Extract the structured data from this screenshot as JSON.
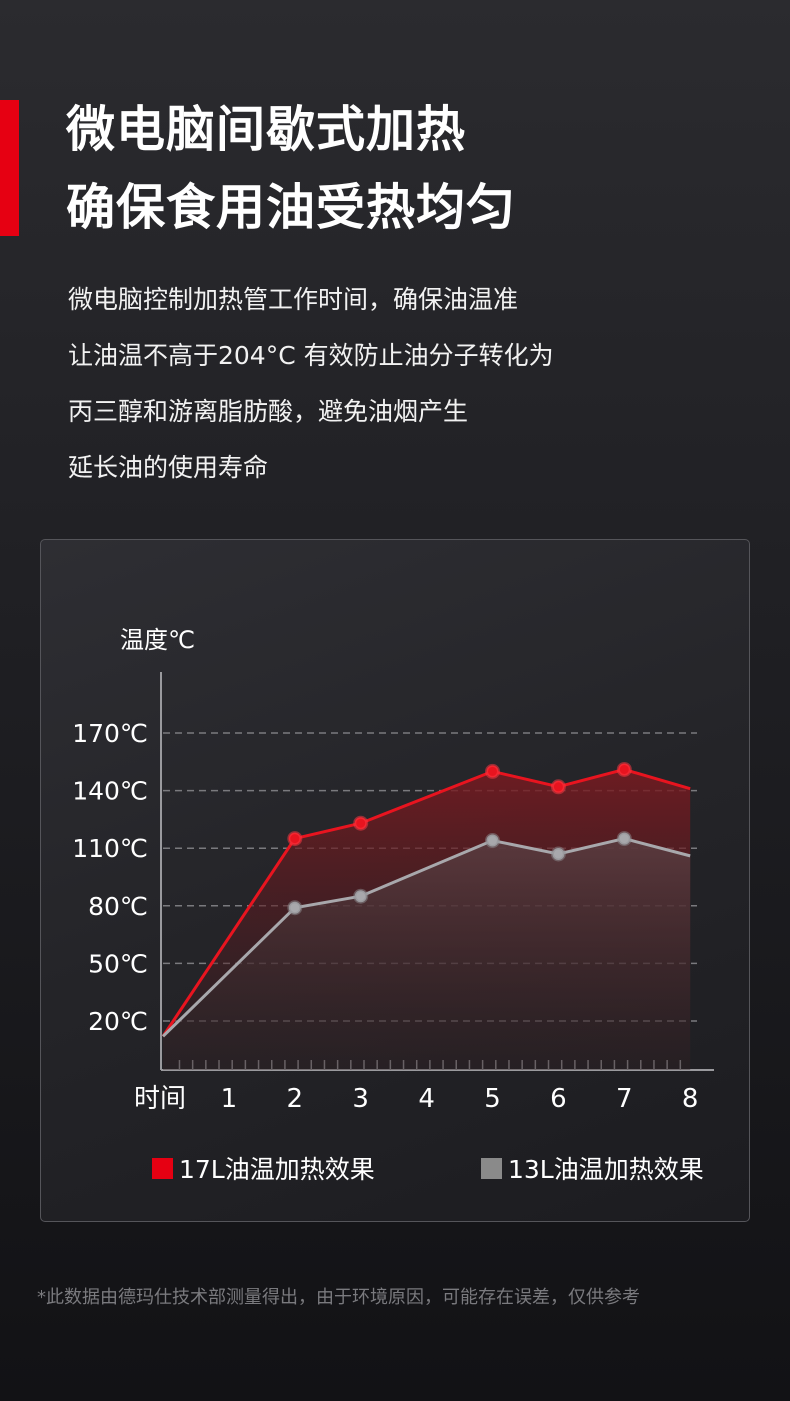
{
  "headline": [
    "微电脑间歇式加热",
    "确保食用油受热均匀"
  ],
  "body": [
    "微电脑控制加热管工作时间，确保油温准",
    "让油温不高于204°C 有效防止油分子转化为",
    "丙三醇和游离脂肪酸，避免油烟产生",
    "延长油的使用寿命"
  ],
  "colors": {
    "accent": "#e60012",
    "series_17L": "#e60012",
    "series_13L": "#8a8a8a"
  },
  "chart_data": {
    "type": "area",
    "ylabel": "温度℃",
    "xlabel": "时间",
    "x_ticks": [
      "1",
      "2",
      "3",
      "4",
      "5",
      "6",
      "7",
      "8"
    ],
    "y_ticks": [
      "170℃",
      "140℃",
      "110℃",
      "80℃",
      "50℃",
      "20℃"
    ],
    "y_tick_values": [
      170,
      140,
      110,
      80,
      50,
      20
    ],
    "grid": "horizontal dashed",
    "legend_placement": "bottom",
    "x": [
      0,
      2,
      3,
      5,
      6,
      7,
      8
    ],
    "series": [
      {
        "name": "17L油温加热效果",
        "color": "#e60012",
        "values": [
          12,
          115,
          123,
          150,
          142,
          151,
          141
        ]
      },
      {
        "name": "13L油温加热效果",
        "color": "#8a8a8a",
        "values": [
          12,
          79,
          85,
          114,
          107,
          115,
          106
        ]
      }
    ]
  },
  "footnote": "*此数据由德玛仕技术部测量得出，由于环境原因，可能存在误差，仅供参考"
}
